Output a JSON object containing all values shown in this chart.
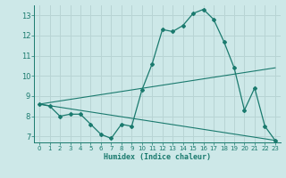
{
  "xlabel": "Humidex (Indice chaleur)",
  "background_color": "#cde8e8",
  "grid_color": "#b8d4d4",
  "line_color": "#1a7a6e",
  "xlim": [
    -0.5,
    23.5
  ],
  "ylim": [
    6.7,
    13.5
  ],
  "yticks": [
    7,
    8,
    9,
    10,
    11,
    12,
    13
  ],
  "xticks": [
    0,
    1,
    2,
    3,
    4,
    5,
    6,
    7,
    8,
    9,
    10,
    11,
    12,
    13,
    14,
    15,
    16,
    17,
    18,
    19,
    20,
    21,
    22,
    23
  ],
  "line1_x": [
    0,
    1,
    2,
    3,
    4,
    5,
    6,
    7,
    8,
    9,
    10,
    11,
    12,
    13,
    14,
    15,
    16,
    17,
    18,
    19,
    20,
    21,
    22,
    23
  ],
  "line1_y": [
    8.6,
    8.5,
    8.0,
    8.1,
    8.1,
    7.6,
    7.1,
    6.9,
    7.6,
    7.5,
    9.3,
    10.6,
    12.3,
    12.2,
    12.5,
    13.1,
    13.3,
    12.8,
    11.7,
    10.4,
    8.3,
    9.4,
    7.5,
    6.8
  ],
  "line2_x": [
    0,
    23
  ],
  "line2_y": [
    8.6,
    10.4
  ],
  "line3_x": [
    0,
    23
  ],
  "line3_y": [
    8.6,
    6.8
  ]
}
